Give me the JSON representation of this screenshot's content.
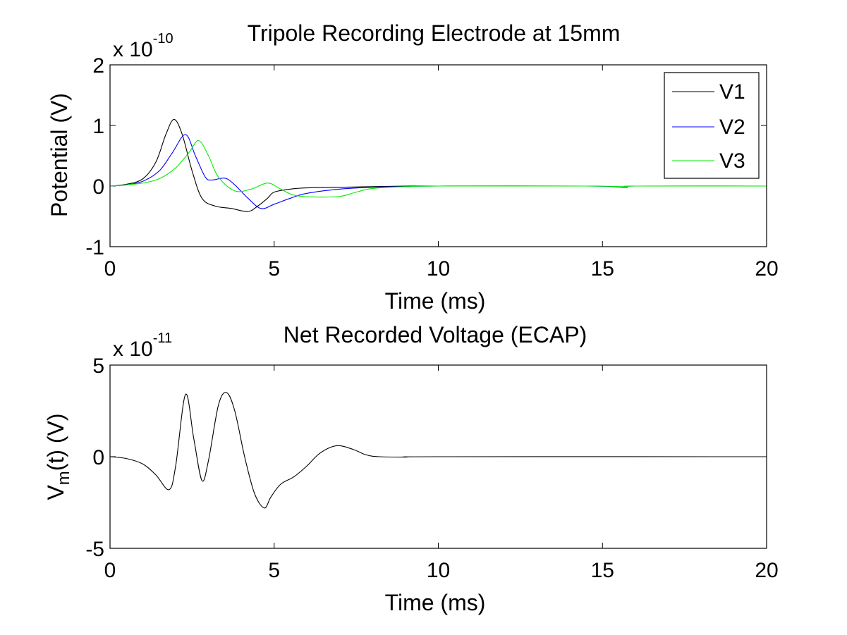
{
  "chart_data": [
    {
      "type": "line",
      "title": "Tripole Recording Electrode at 15mm",
      "xlabel": "Time (ms)",
      "ylabel": "Potential (V)",
      "y_multiplier": {
        "base": "x 10",
        "exponent": "-10"
      },
      "xlim": [
        0,
        20
      ],
      "ylim": [
        -1,
        2
      ],
      "xticks": [
        0,
        5,
        10,
        15,
        20
      ],
      "yticks": [
        -1,
        0,
        1,
        2
      ],
      "grid": false,
      "legend_position": "top-right",
      "series": [
        {
          "name": "V1",
          "color": "#000000",
          "x": [
            0,
            0.5,
            1.0,
            1.4,
            1.7,
            1.95,
            2.2,
            2.5,
            2.8,
            3.2,
            3.7,
            4.2,
            4.5,
            4.8,
            5.0,
            5.5,
            6.0,
            7.0,
            8.0,
            9.0,
            10.0
          ],
          "y": [
            0,
            0.03,
            0.12,
            0.4,
            0.85,
            1.1,
            0.85,
            0.25,
            -0.2,
            -0.33,
            -0.37,
            -0.42,
            -0.33,
            -0.2,
            -0.1,
            -0.05,
            -0.03,
            -0.02,
            -0.01,
            0,
            0
          ]
        },
        {
          "name": "V2",
          "color": "#0000ff",
          "x": [
            0,
            0.5,
            1.0,
            1.5,
            1.9,
            2.3,
            2.6,
            2.9,
            3.1,
            3.5,
            3.8,
            4.2,
            4.6,
            5.0,
            5.5,
            6.0,
            7.0,
            8.0,
            9.0,
            10.0,
            14.5,
            15.7,
            16.0,
            20.0
          ],
          "y": [
            0,
            0.02,
            0.08,
            0.25,
            0.55,
            0.85,
            0.5,
            0.15,
            0.1,
            0.13,
            0.02,
            -0.2,
            -0.37,
            -0.3,
            -0.2,
            -0.12,
            -0.05,
            -0.02,
            -0.01,
            0,
            0,
            -0.02,
            0,
            0
          ]
        },
        {
          "name": "V3",
          "color": "#00ee00",
          "x": [
            0,
            0.5,
            1.0,
            1.5,
            2.0,
            2.4,
            2.7,
            3.0,
            3.3,
            3.8,
            4.3,
            4.8,
            5.2,
            5.6,
            6.2,
            7.0,
            7.5,
            8.0,
            9.0,
            10.0,
            14.5,
            15.7,
            16.0,
            20.0
          ],
          "y": [
            0,
            0.02,
            0.05,
            0.12,
            0.3,
            0.55,
            0.75,
            0.5,
            0.15,
            -0.08,
            -0.05,
            0.05,
            -0.05,
            -0.15,
            -0.18,
            -0.17,
            -0.1,
            -0.04,
            -0.01,
            0,
            0,
            -0.01,
            0,
            0
          ]
        }
      ]
    },
    {
      "type": "line",
      "title": "Net Recorded Voltage (ECAP)",
      "xlabel": "Time (ms)",
      "ylabel": "V",
      "ylabel_subscript": "m",
      "ylabel_suffix": "(t) (V)",
      "y_multiplier": {
        "base": "x 10",
        "exponent": "-11"
      },
      "xlim": [
        0,
        20
      ],
      "ylim": [
        -5,
        5
      ],
      "xticks": [
        0,
        5,
        10,
        15,
        20
      ],
      "yticks": [
        -5,
        0,
        5
      ],
      "grid": false,
      "series": [
        {
          "color": "#000000",
          "x": [
            0,
            0.5,
            1.0,
            1.4,
            1.8,
            2.0,
            2.3,
            2.55,
            2.8,
            3.0,
            3.3,
            3.55,
            3.8,
            4.1,
            4.4,
            4.7,
            4.9,
            5.2,
            5.6,
            6.0,
            6.4,
            6.9,
            7.4,
            7.8,
            8.2,
            9.0,
            10.0,
            20.0
          ],
          "y": [
            0,
            -0.1,
            -0.4,
            -1.0,
            -1.8,
            -0.5,
            3.4,
            1.0,
            -1.3,
            -0.2,
            2.8,
            3.5,
            2.5,
            0.0,
            -2.0,
            -2.8,
            -2.2,
            -1.5,
            -1.1,
            -0.5,
            0.2,
            0.6,
            0.4,
            0.1,
            0.0,
            -0.02,
            0,
            0
          ]
        }
      ]
    }
  ]
}
